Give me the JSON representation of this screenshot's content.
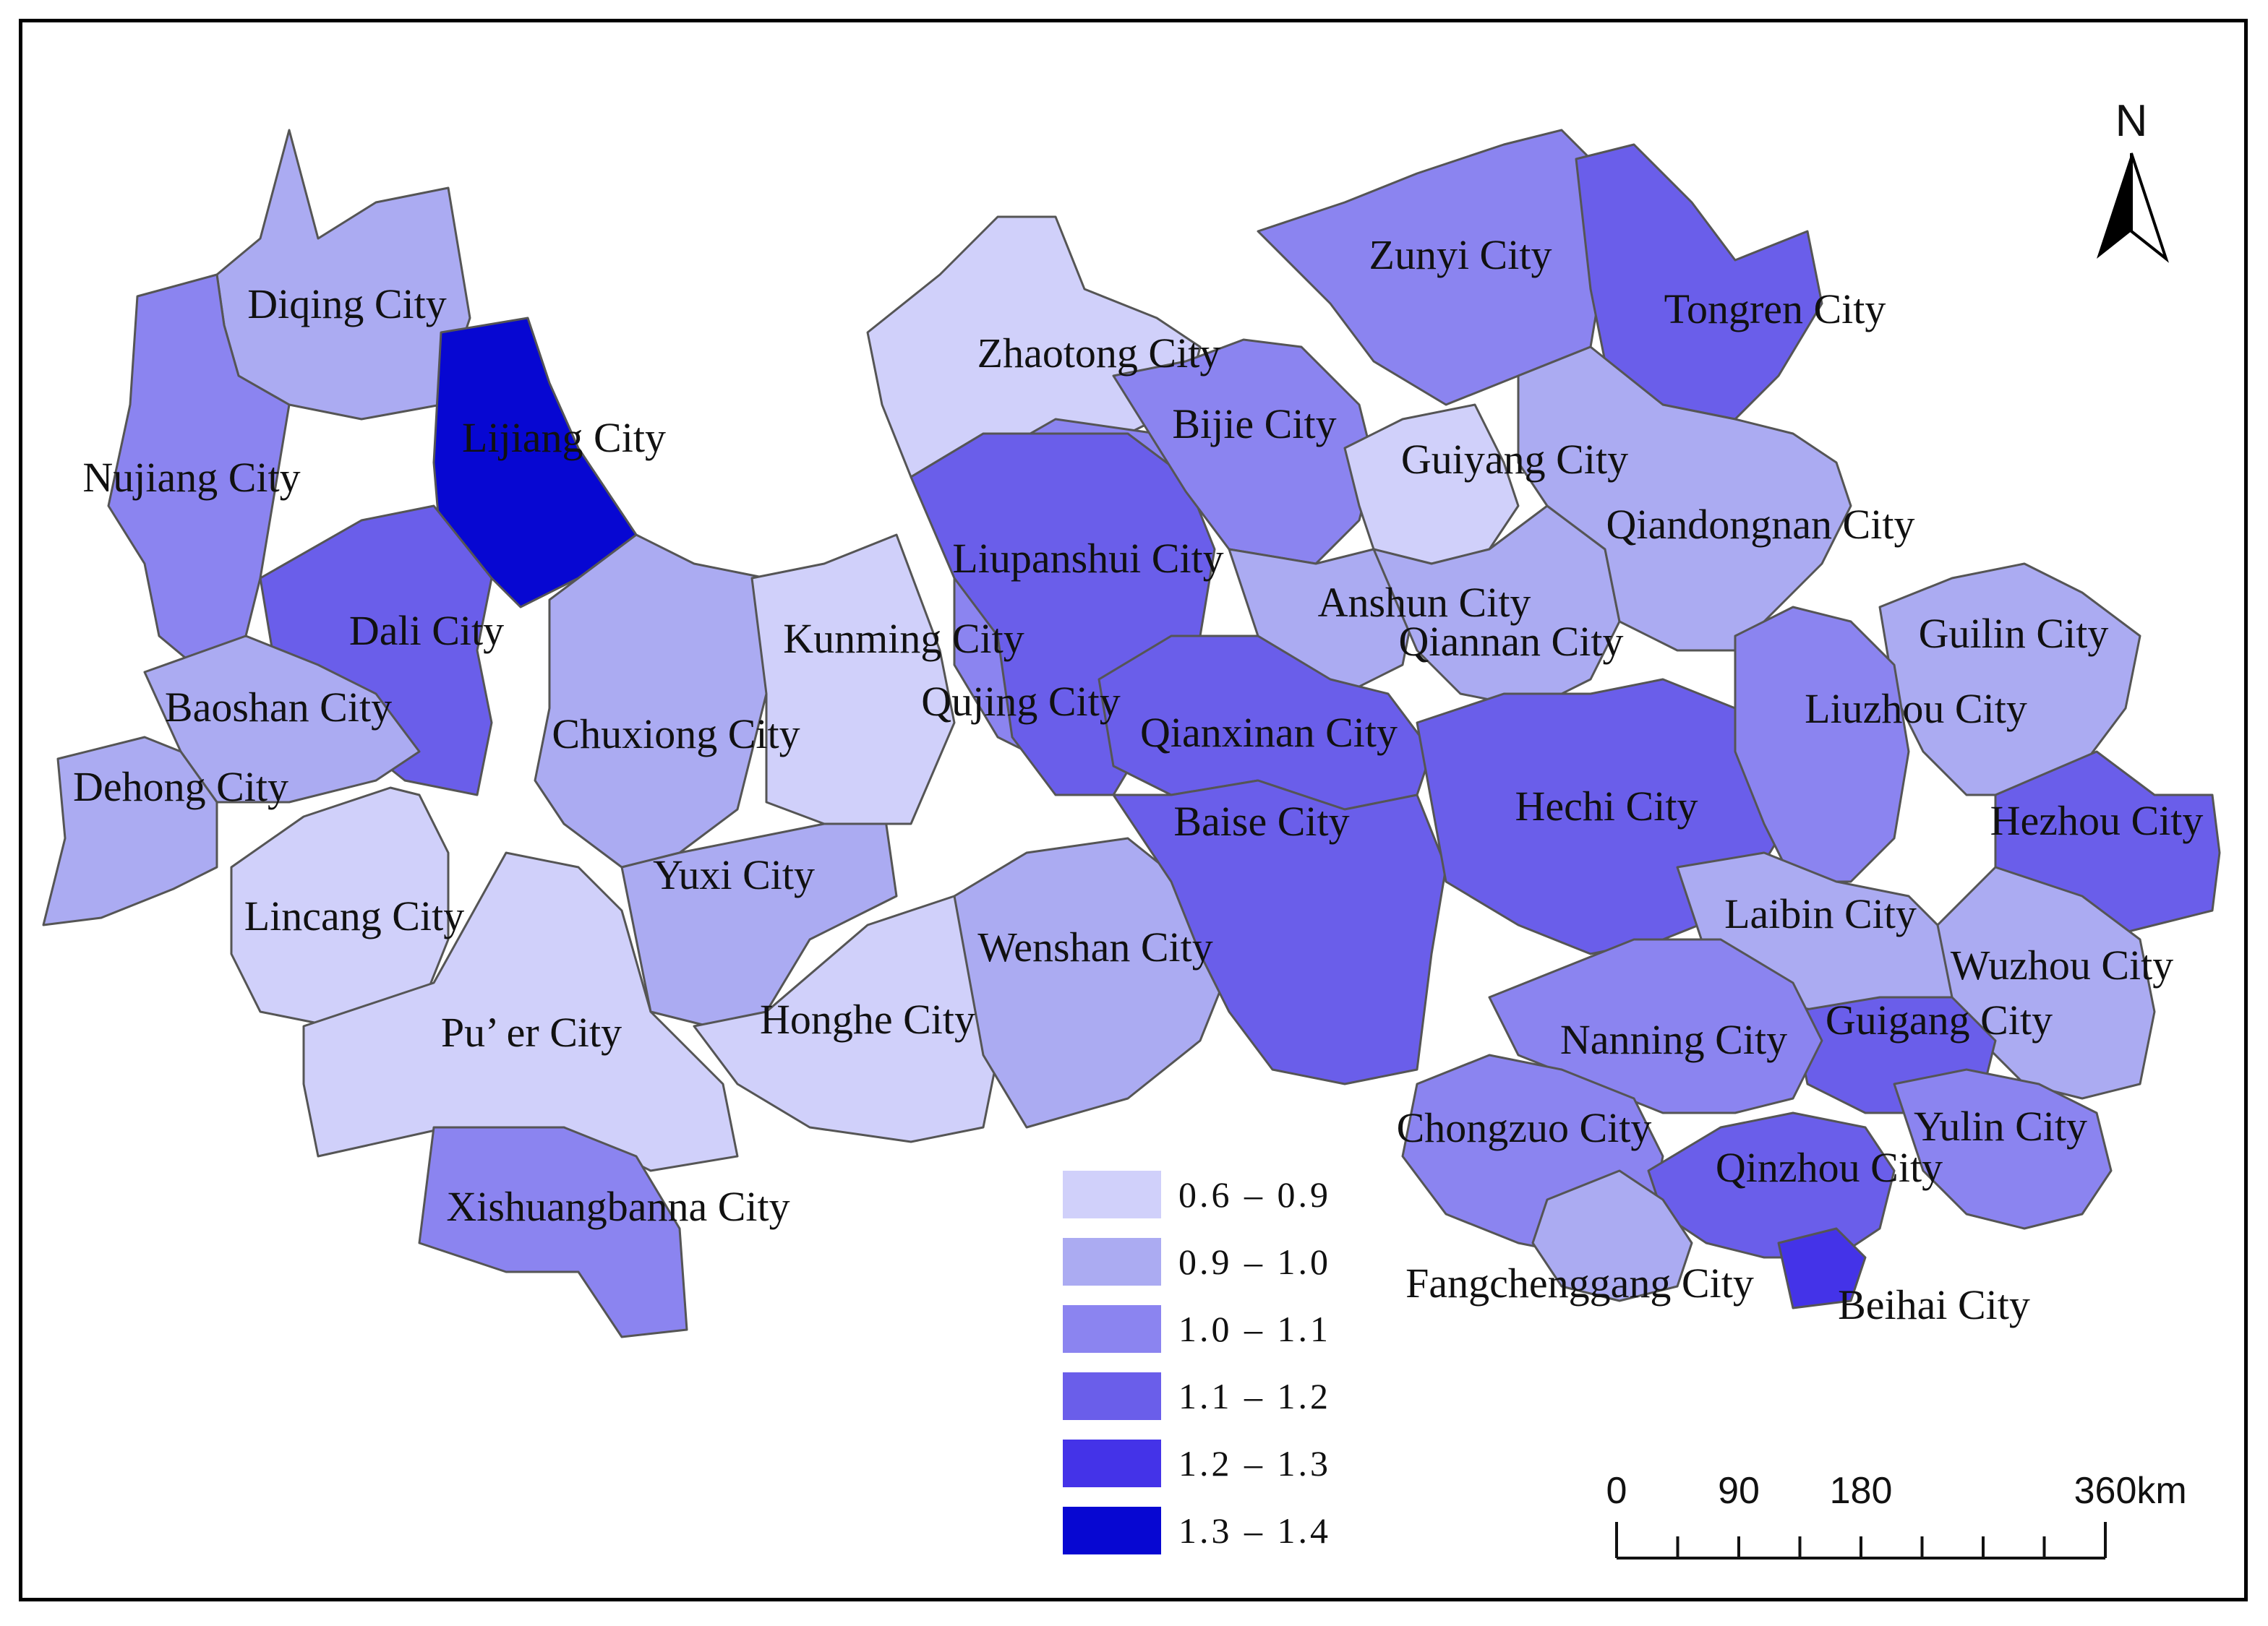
{
  "map": {
    "north_label": "N",
    "legend": [
      {
        "label": "0.6 – 0.9",
        "color": "#d0d0fa"
      },
      {
        "label": "0.9 – 1.0",
        "color": "#ababf2"
      },
      {
        "label": "1.0 – 1.1",
        "color": "#8b84f0"
      },
      {
        "label": "1.1 – 1.2",
        "color": "#6a5eea"
      },
      {
        "label": "1.2 – 1.3",
        "color": "#4433e8"
      },
      {
        "label": "1.3 – 1.4",
        "color": "#0707d2"
      }
    ],
    "scale_bar": {
      "ticks": [
        "0",
        "90",
        "180",
        "360"
      ],
      "unit": "km"
    },
    "cities": [
      {
        "name": "Diqing City",
        "class": 1
      },
      {
        "name": "Lijiang City",
        "class": 5
      },
      {
        "name": "Nujiang City",
        "class": 2
      },
      {
        "name": "Dali City",
        "class": 3
      },
      {
        "name": "Baoshan City",
        "class": 1
      },
      {
        "name": "Dehong City",
        "class": 1
      },
      {
        "name": "Chuxiong City",
        "class": 1
      },
      {
        "name": "Lincang City",
        "class": 0
      },
      {
        "name": "Pu’ er City",
        "class": 0
      },
      {
        "name": "Xishuangbanna City",
        "class": 2
      },
      {
        "name": "Yuxi City",
        "class": 1
      },
      {
        "name": "Kunming City",
        "class": 0
      },
      {
        "name": "Zhaotong City",
        "class": 0
      },
      {
        "name": "Qujing City",
        "class": 2
      },
      {
        "name": "Honghe City",
        "class": 0
      },
      {
        "name": "Wenshan City",
        "class": 1
      },
      {
        "name": "Liupanshui City",
        "class": 3
      },
      {
        "name": "Bijie City",
        "class": 2
      },
      {
        "name": "Zunyi City",
        "class": 2
      },
      {
        "name": "Tongren City",
        "class": 3
      },
      {
        "name": "Guiyang City",
        "class": 0
      },
      {
        "name": "Anshun City",
        "class": 1
      },
      {
        "name": "Qianxinan City",
        "class": 3
      },
      {
        "name": "Qiannan City",
        "class": 1
      },
      {
        "name": "Qiandongnan City",
        "class": 1
      },
      {
        "name": "Baise City",
        "class": 3
      },
      {
        "name": "Hechi City",
        "class": 3
      },
      {
        "name": "Guilin City",
        "class": 1
      },
      {
        "name": "Liuzhou City",
        "class": 2
      },
      {
        "name": "Hezhou City",
        "class": 3
      },
      {
        "name": "Laibin City",
        "class": 1
      },
      {
        "name": "Wuzhou City",
        "class": 1
      },
      {
        "name": "Guigang City",
        "class": 3
      },
      {
        "name": "Nanning City",
        "class": 2
      },
      {
        "name": "Chongzuo City",
        "class": 2
      },
      {
        "name": "Yulin City",
        "class": 2
      },
      {
        "name": "Qinzhou City",
        "class": 3
      },
      {
        "name": "Fangchenggang City",
        "class": 1
      },
      {
        "name": "Beihai City",
        "class": 4
      }
    ]
  }
}
